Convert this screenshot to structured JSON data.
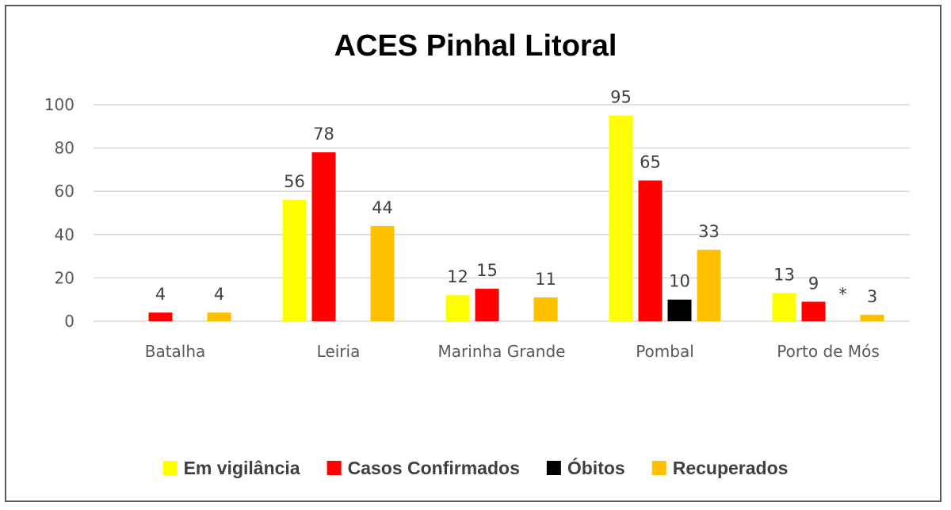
{
  "chart_data": {
    "type": "bar",
    "title": "ACES Pinhal Litoral",
    "categories": [
      "Batalha",
      "Leiria",
      "Marinha Grande",
      "Pombal",
      "Porto de Mós"
    ],
    "series": [
      {
        "name": "Em vigilância",
        "color": "#ffff00",
        "values": [
          null,
          56,
          12,
          95,
          13
        ]
      },
      {
        "name": "Casos Confirmados",
        "color": "#ff0000",
        "values": [
          4,
          78,
          15,
          65,
          9
        ]
      },
      {
        "name": "Óbitos",
        "color": "#000000",
        "values": [
          null,
          null,
          null,
          10,
          null
        ]
      },
      {
        "name": "Recuperados",
        "color": "#ffc000",
        "values": [
          4,
          44,
          11,
          33,
          3
        ]
      }
    ],
    "ylim": [
      0,
      100
    ],
    "yticks": [
      0,
      20,
      40,
      60,
      80,
      100
    ],
    "annotations": [
      {
        "category": "Porto de Mós",
        "series": "Óbitos",
        "text": "*"
      }
    ],
    "grid": true,
    "legend_position": "bottom"
  }
}
